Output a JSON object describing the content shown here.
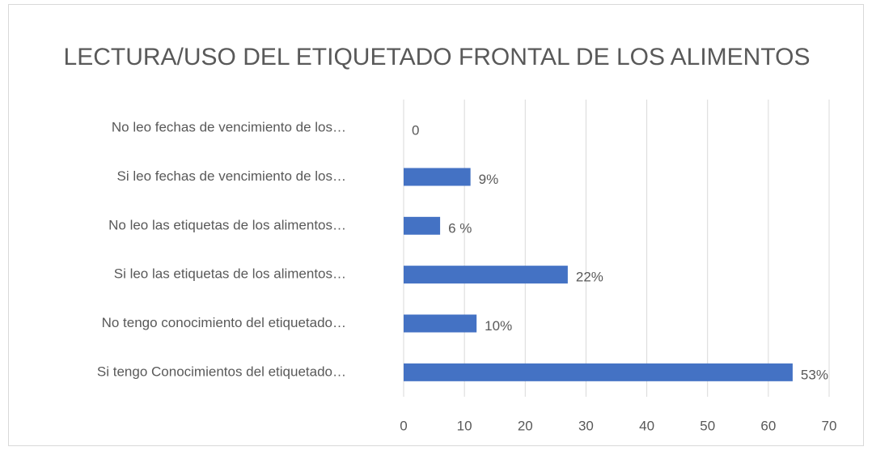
{
  "chart_data": {
    "type": "bar",
    "orientation": "horizontal",
    "title": "LECTURA/USO DEL ETIQUETADO FRONTAL DE LOS ALIMENTOS",
    "categories": [
      "No leo fechas de vencimiento de los…",
      "Si leo fechas de vencimiento de los…",
      "No leo las etiquetas de los alimentos…",
      "Si leo las etiquetas de los alimentos…",
      "No tengo conocimiento del etiquetado…",
      "Si tengo Conocimientos del etiquetado…"
    ],
    "values": [
      0,
      11,
      6,
      27,
      12,
      64
    ],
    "value_labels": [
      "0",
      "9%",
      "6 %",
      "22%",
      "10%",
      "53%"
    ],
    "color": "#4472c4",
    "xlim": [
      0,
      70
    ],
    "xticks": [
      0,
      10,
      20,
      30,
      40,
      50,
      60,
      70
    ],
    "grid": true
  }
}
